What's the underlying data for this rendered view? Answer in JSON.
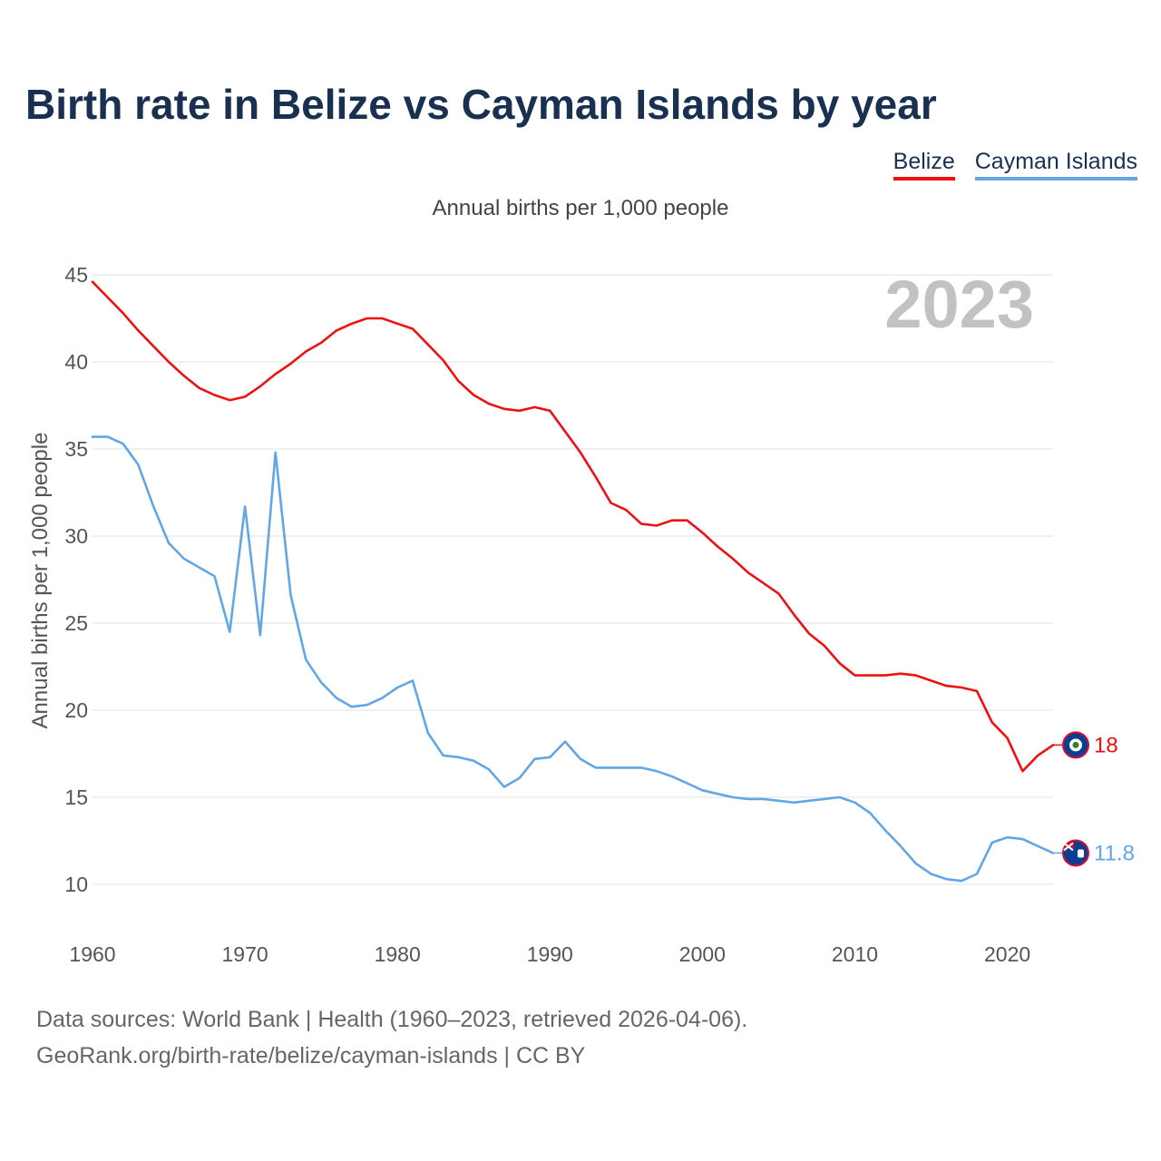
{
  "title": "Birth rate in Belize vs Cayman Islands by year",
  "legend": [
    {
      "label": "Belize",
      "color": "#ee1111"
    },
    {
      "label": "Cayman Islands",
      "color": "#62a6e6"
    }
  ],
  "subtitle": "Annual births per 1,000 people",
  "source_line1": "Data sources: World Bank | Health (1960–2023, retrieved 2026-04-06).",
  "source_line2": "GeoRank.org/birth-rate/belize/cayman-islands | CC BY",
  "chart_data": {
    "type": "line",
    "title": "Birth rate in Belize vs Cayman Islands by year",
    "subtitle": "Annual births per 1,000 people",
    "xlabel": "",
    "ylabel": "Annual births per 1,000 people",
    "xlim": [
      1960,
      2023
    ],
    "ylim": [
      8,
      45
    ],
    "x_ticks": [
      1960,
      1970,
      1980,
      1990,
      2000,
      2010,
      2020
    ],
    "y_ticks": [
      10,
      15,
      20,
      25,
      30,
      35,
      40,
      45
    ],
    "grid": true,
    "legend_position": "top-right",
    "year_label": "2023",
    "x": [
      1960,
      1961,
      1962,
      1963,
      1964,
      1965,
      1966,
      1967,
      1968,
      1969,
      1970,
      1971,
      1972,
      1973,
      1974,
      1975,
      1976,
      1977,
      1978,
      1979,
      1980,
      1981,
      1982,
      1983,
      1984,
      1985,
      1986,
      1987,
      1988,
      1989,
      1990,
      1991,
      1992,
      1993,
      1994,
      1995,
      1996,
      1997,
      1998,
      1999,
      2000,
      2001,
      2002,
      2003,
      2004,
      2005,
      2006,
      2007,
      2008,
      2009,
      2010,
      2011,
      2012,
      2013,
      2014,
      2015,
      2016,
      2017,
      2018,
      2019,
      2020,
      2021,
      2022,
      2023
    ],
    "series": [
      {
        "name": "Belize",
        "color": "#ee1111",
        "end_label": "18",
        "values": [
          44.6,
          43.7,
          42.8,
          41.8,
          40.9,
          40.0,
          39.2,
          38.5,
          38.1,
          37.8,
          38.0,
          38.6,
          39.3,
          39.9,
          40.6,
          41.1,
          41.8,
          42.2,
          42.5,
          42.5,
          42.2,
          41.9,
          41.0,
          40.1,
          38.9,
          38.1,
          37.6,
          37.3,
          37.2,
          37.4,
          37.2,
          36.0,
          34.8,
          33.4,
          31.9,
          31.5,
          30.7,
          30.6,
          30.9,
          30.9,
          30.2,
          29.4,
          28.7,
          27.9,
          27.3,
          26.7,
          25.5,
          24.4,
          23.7,
          22.7,
          22.0,
          22.0,
          22.0,
          22.1,
          22.0,
          21.7,
          21.4,
          21.3,
          21.1,
          19.3,
          18.4,
          16.5,
          17.4,
          18.0
        ]
      },
      {
        "name": "Cayman Islands",
        "color": "#62a6e6",
        "end_label": "11.8",
        "values": [
          35.7,
          35.7,
          35.3,
          34.1,
          31.7,
          29.6,
          28.7,
          28.2,
          27.7,
          24.5,
          31.7,
          24.3,
          34.8,
          26.6,
          22.9,
          21.6,
          20.7,
          20.2,
          20.3,
          20.7,
          21.3,
          21.7,
          18.7,
          17.4,
          17.3,
          17.1,
          16.6,
          15.6,
          16.1,
          17.2,
          17.3,
          18.2,
          17.2,
          16.7,
          16.7,
          16.7,
          16.7,
          16.5,
          16.2,
          15.8,
          15.4,
          15.2,
          15.0,
          14.9,
          14.9,
          14.8,
          14.7,
          14.8,
          14.9,
          15.0,
          14.7,
          14.1,
          13.1,
          12.2,
          11.2,
          10.6,
          10.3,
          10.2,
          10.6,
          12.4,
          12.7,
          12.6,
          12.2,
          11.8
        ]
      }
    ]
  }
}
